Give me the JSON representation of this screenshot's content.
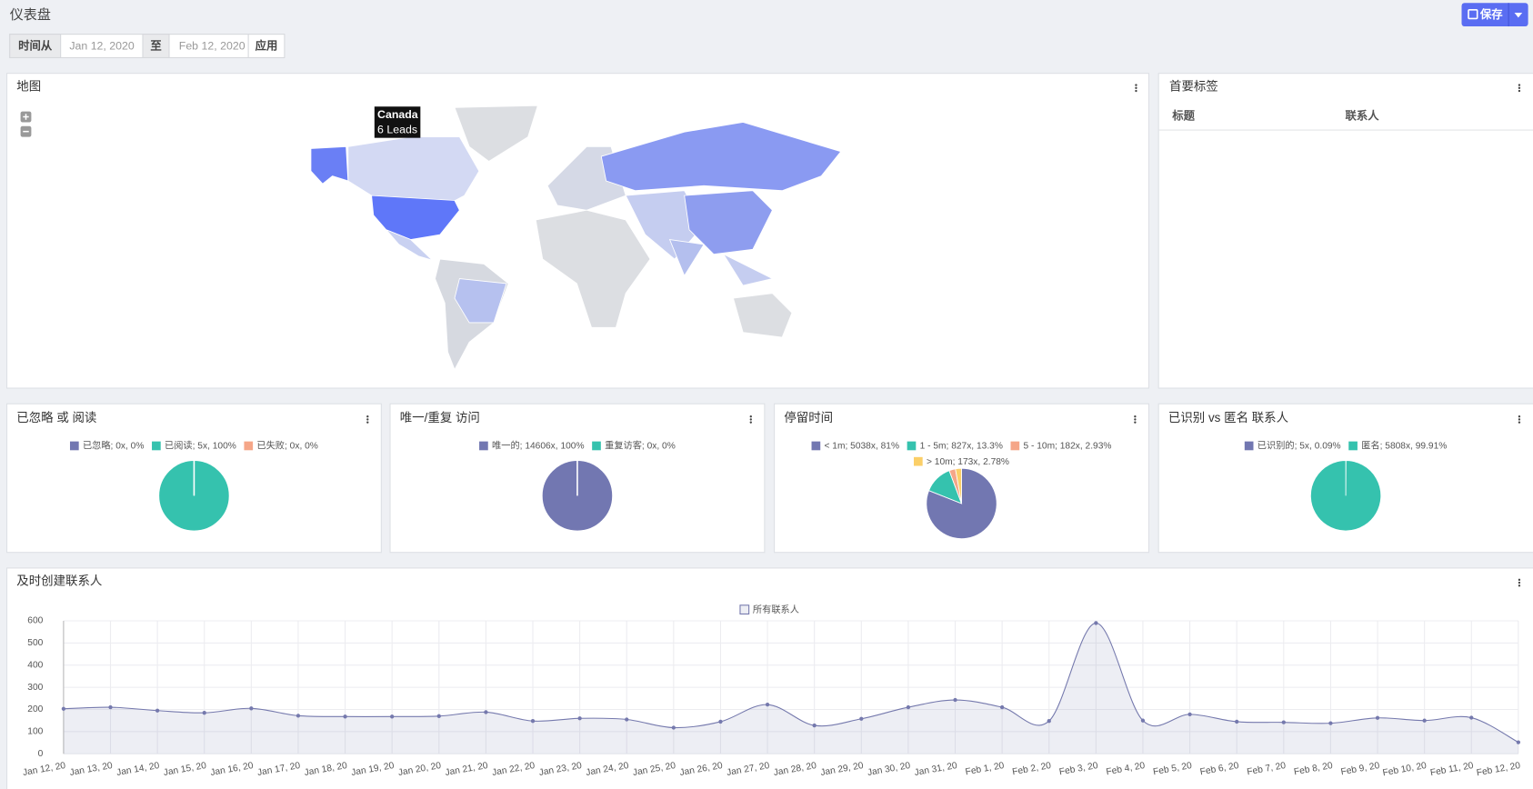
{
  "header": {
    "title": "仪表盘",
    "save": "保存"
  },
  "filters": {
    "from_label": "时间从",
    "from": "Jan 12, 2020",
    "to_label": "至",
    "to": "Feb 12, 2020",
    "apply": "应用"
  },
  "map": {
    "title": "地图",
    "tooltip": {
      "country": "Canada",
      "leads": "6 Leads"
    }
  },
  "top_tags": {
    "title": "首要标签",
    "columns": [
      "标题",
      "联系人"
    ]
  },
  "chart_data": [
    {
      "type": "pie",
      "title": "已忽略 或 阅读",
      "categories": [
        "已忽略; 0x, 0%",
        "已阅读; 5x, 100%",
        "已失败; 0x, 0%"
      ],
      "values": [
        0,
        5,
        0
      ],
      "colors": [
        "#7277b1",
        "#35c2ae",
        "#f5a688"
      ]
    },
    {
      "type": "pie",
      "title": "唯一/重复 访问",
      "categories": [
        "唯一的; 14606x, 100%",
        "重复访客; 0x, 0%"
      ],
      "values": [
        14606,
        0
      ],
      "colors": [
        "#7277b1",
        "#35c2ae"
      ]
    },
    {
      "type": "pie",
      "title": "停留时间",
      "categories": [
        "< 1m; 5038x, 81%",
        "1 - 5m; 827x, 13.3%",
        "5 - 10m; 182x, 2.93%",
        "> 10m; 173x, 2.78%"
      ],
      "values": [
        5038,
        827,
        182,
        173
      ],
      "colors": [
        "#7277b1",
        "#35c2ae",
        "#f5a688",
        "#fbcf68"
      ]
    },
    {
      "type": "pie",
      "title": "已识别 vs 匿名 联系人",
      "categories": [
        "已识别的; 5x, 0.09%",
        "匿名; 5808x, 99.91%"
      ],
      "values": [
        5,
        5808
      ],
      "colors": [
        "#7277b1",
        "#35c2ae"
      ]
    },
    {
      "type": "line",
      "title": "及时创建联系人",
      "categories": [
        "Jan 12, 20",
        "Jan 13, 20",
        "Jan 14, 20",
        "Jan 15, 20",
        "Jan 16, 20",
        "Jan 17, 20",
        "Jan 18, 20",
        "Jan 19, 20",
        "Jan 20, 20",
        "Jan 21, 20",
        "Jan 22, 20",
        "Jan 23, 20",
        "Jan 24, 20",
        "Jan 25, 20",
        "Jan 26, 20",
        "Jan 27, 20",
        "Jan 28, 20",
        "Jan 29, 20",
        "Jan 30, 20",
        "Jan 31, 20",
        "Feb 1, 20",
        "Feb 2, 20",
        "Feb 3, 20",
        "Feb 4, 20",
        "Feb 5, 20",
        "Feb 6, 20",
        "Feb 7, 20",
        "Feb 8, 20",
        "Feb 9, 20",
        "Feb 10, 20",
        "Feb 11, 20",
        "Feb 12, 20"
      ],
      "series": [
        {
          "name": "所有联系人",
          "color": "#7579ad",
          "values": [
            203,
            210,
            195,
            185,
            205,
            172,
            168,
            168,
            170,
            188,
            148,
            160,
            155,
            118,
            145,
            222,
            128,
            158,
            210,
            243,
            210,
            148,
            590,
            150,
            178,
            145,
            142,
            138,
            162,
            150,
            163,
            52
          ]
        }
      ],
      "ylim": [
        0,
        600
      ],
      "yticks": [
        0,
        100,
        200,
        300,
        400,
        500,
        600
      ],
      "grid": true
    }
  ]
}
